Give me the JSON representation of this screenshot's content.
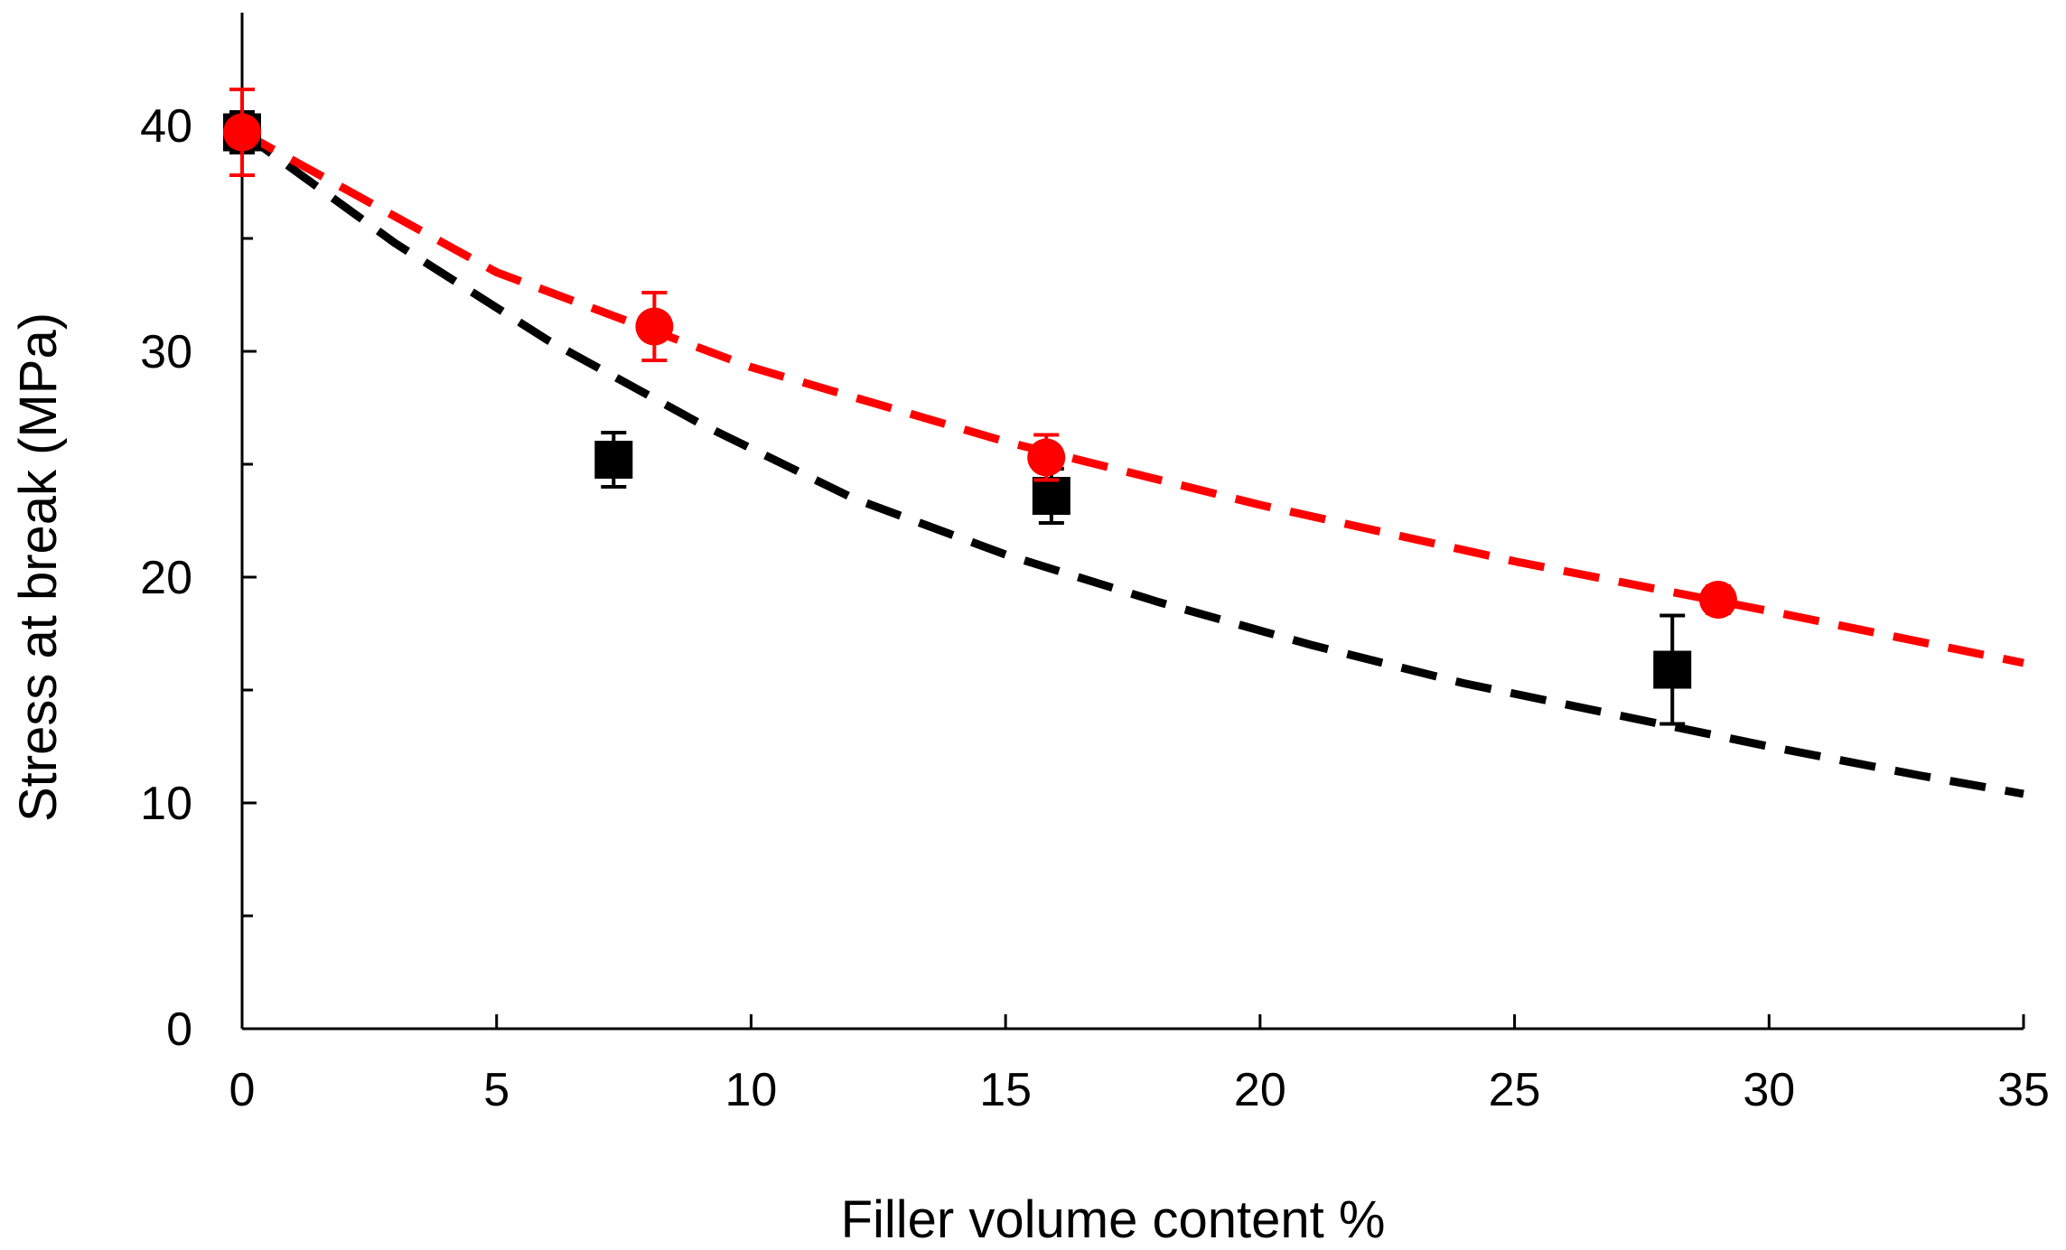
{
  "chart_data": {
    "type": "scatter",
    "title": "",
    "xlabel": "Filler volume  content %",
    "ylabel": "Stress at break (MPa)",
    "xlim": [
      0,
      35
    ],
    "ylim": [
      0,
      45
    ],
    "xticks": [
      0,
      5,
      10,
      15,
      20,
      25,
      30,
      35
    ],
    "xtick_labels": [
      "0",
      "5",
      "10",
      "15",
      "20",
      "25",
      "30",
      "35"
    ],
    "yticks": [
      0,
      10,
      20,
      30,
      40
    ],
    "ytick_labels": [
      "0",
      "10",
      "20",
      "30",
      "40"
    ],
    "y_minor_ticks": [
      5,
      15,
      25,
      35
    ],
    "grid": false,
    "legend": "none",
    "series": [
      {
        "marker": "square",
        "color": "#000000",
        "x": [
          0,
          7.3,
          15.9,
          28.1
        ],
        "y": [
          39.7,
          25.2,
          23.6,
          15.9
        ],
        "yerr": [
          0.9,
          1.2,
          1.2,
          2.4
        ]
      },
      {
        "marker": "circle",
        "color": "#ff0000",
        "x": [
          0,
          8.1,
          15.8,
          29.0
        ],
        "y": [
          39.7,
          31.1,
          25.3,
          19.0
        ],
        "yerr": [
          1.9,
          1.5,
          1.0,
          0.6
        ]
      }
    ],
    "fits": [
      {
        "style": "dashed",
        "color": "#000000",
        "x": [
          0,
          3,
          6,
          9,
          12,
          15,
          18,
          21,
          24,
          27,
          30,
          33,
          35
        ],
        "y": [
          39.7,
          34.8,
          30.5,
          26.8,
          23.5,
          21.0,
          18.9,
          17.0,
          15.3,
          13.9,
          12.5,
          11.2,
          10.4
        ]
      },
      {
        "style": "dashed",
        "color": "#ff0000",
        "x": [
          0,
          5,
          10,
          15,
          20,
          25,
          30,
          35
        ],
        "y": [
          39.7,
          33.5,
          29.3,
          26.0,
          23.2,
          20.7,
          18.5,
          16.2
        ]
      }
    ]
  }
}
